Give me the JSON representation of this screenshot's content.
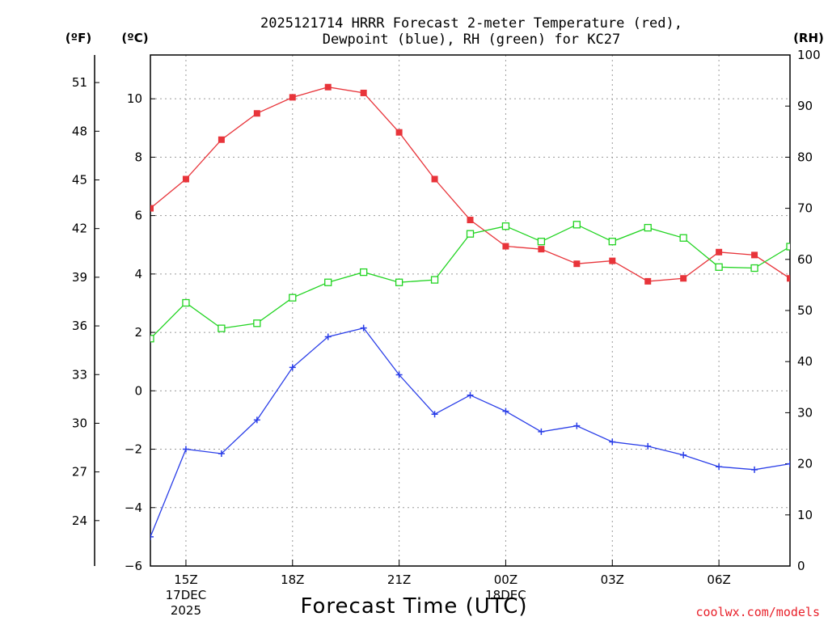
{
  "chart_data": {
    "type": "line",
    "title_lines": [
      "2025121714 HRRR Forecast 2-meter Temperature (red),",
      "Dewpoint (blue), RH (green) for KC27"
    ],
    "xlabel": "Forecast Time (UTC)",
    "credit": "coolwx.com/models",
    "units": {
      "fahrenheit": "(ºF)",
      "celsius": "(ºC)",
      "rh": "(RH)"
    },
    "x_hours": [
      14,
      15,
      16,
      17,
      18,
      19,
      20,
      21,
      22,
      23,
      24,
      25,
      26,
      27,
      28,
      29,
      30,
      31,
      32
    ],
    "x_range": [
      14,
      32
    ],
    "x_ticks": [
      {
        "hour": 15,
        "label": "15Z",
        "date": "17DEC",
        "year": "2025"
      },
      {
        "hour": 18,
        "label": "18Z"
      },
      {
        "hour": 21,
        "label": "21Z"
      },
      {
        "hour": 24,
        "label": "00Z",
        "date": "18DEC"
      },
      {
        "hour": 27,
        "label": "03Z"
      },
      {
        "hour": 30,
        "label": "06Z"
      }
    ],
    "celsius_axis": {
      "range": [
        -6,
        11.5
      ],
      "ticks": [
        -6,
        -4,
        -2,
        0,
        2,
        4,
        6,
        8,
        10
      ]
    },
    "fahrenheit_axis": {
      "ticks": [
        24,
        27,
        30,
        33,
        36,
        39,
        42,
        45,
        48,
        51
      ]
    },
    "rh_axis": {
      "range": [
        0,
        100
      ],
      "ticks": [
        0,
        10,
        20,
        30,
        40,
        50,
        60,
        70,
        80,
        90,
        100
      ]
    },
    "series": [
      {
        "name": "Temperature",
        "color": "#e8343a",
        "marker": "filled-square",
        "axis": "celsius",
        "values": [
          6.25,
          7.25,
          8.6,
          9.5,
          10.05,
          10.4,
          10.2,
          8.85,
          7.25,
          5.85,
          4.95,
          4.85,
          4.35,
          4.45,
          3.75,
          3.85,
          4.75,
          4.65,
          3.85
        ]
      },
      {
        "name": "Dewpoint",
        "color": "#2a3ee8",
        "marker": "plus",
        "axis": "celsius",
        "values": [
          -5.0,
          -2.0,
          -2.15,
          -1.0,
          0.8,
          1.85,
          2.15,
          0.55,
          -0.8,
          -0.15,
          -0.7,
          -1.4,
          -1.2,
          -1.75,
          -1.9,
          -2.2,
          -2.6,
          -2.7,
          -2.5
        ]
      },
      {
        "name": "RH",
        "color": "#22d422",
        "marker": "open-square",
        "axis": "rh",
        "values": [
          44.5,
          51.5,
          46.5,
          47.5,
          52.5,
          55.5,
          57.5,
          55.5,
          56.0,
          65.0,
          66.5,
          63.5,
          66.8,
          63.5,
          66.2,
          64.2,
          58.5,
          58.3,
          62.5
        ]
      }
    ]
  }
}
